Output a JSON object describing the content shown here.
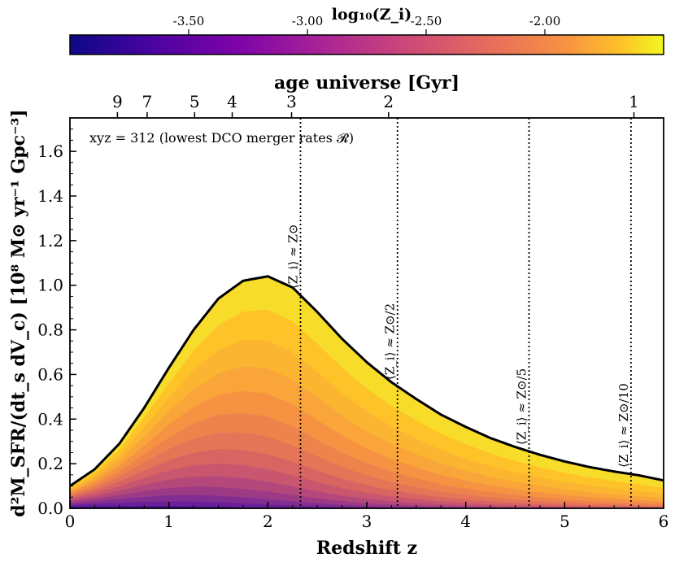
{
  "chart_data": {
    "type": "area",
    "xlabel": "Redshift z",
    "ylabel": "d²M_SFR/(dt_s dV_c) [10⁸ M⊙ yr⁻¹ Gpc⁻³]",
    "xlim": [
      0,
      6
    ],
    "ylim": [
      0,
      1.75
    ],
    "x_ticks": [
      0,
      1,
      2,
      3,
      4,
      5,
      6
    ],
    "y_ticks": [
      0.0,
      0.2,
      0.4,
      0.6,
      0.8,
      1.0,
      1.2,
      1.4,
      1.6
    ],
    "x_tick_labels": [
      "0",
      "1",
      "2",
      "3",
      "4",
      "5",
      "6"
    ],
    "y_tick_labels": [
      "0.0",
      "0.2",
      "0.4",
      "0.6",
      "0.8",
      "1.0",
      "1.2",
      "1.4",
      "1.6"
    ],
    "top_axis": {
      "label": "age universe [Gyr]",
      "ticks": [
        {
          "label": "9",
          "z": 0.48
        },
        {
          "label": "7",
          "z": 0.78
        },
        {
          "label": "5",
          "z": 1.26
        },
        {
          "label": "4",
          "z": 1.64
        },
        {
          "label": "3",
          "z": 2.24
        },
        {
          "label": "2",
          "z": 3.22
        },
        {
          "label": "1",
          "z": 5.7
        }
      ]
    },
    "total_sfrd_curve": {
      "x": [
        0,
        0.25,
        0.5,
        0.75,
        1.0,
        1.25,
        1.5,
        1.75,
        2.0,
        2.25,
        2.5,
        2.75,
        3.0,
        3.25,
        3.5,
        3.75,
        4.0,
        4.25,
        4.5,
        4.75,
        5.0,
        5.25,
        5.5,
        5.75,
        6.0
      ],
      "y": [
        0.1,
        0.175,
        0.29,
        0.45,
        0.63,
        0.8,
        0.94,
        1.02,
        1.04,
        0.99,
        0.88,
        0.76,
        0.655,
        0.565,
        0.49,
        0.42,
        0.365,
        0.315,
        0.275,
        0.24,
        0.21,
        0.185,
        0.165,
        0.148,
        0.125
      ]
    },
    "metallicity_bands": 14,
    "vertical_lines": [
      {
        "z": 2.33,
        "label": "⟨Z_i⟩ ≈ Z⊙"
      },
      {
        "z": 3.31,
        "label": "⟨Z_i⟩ ≈ Z⊙/2"
      },
      {
        "z": 4.64,
        "label": "⟨Z_i⟩ ≈ Z⊙/5"
      },
      {
        "z": 5.67,
        "label": "⟨Z_i⟩ ≈ Z⊙/10"
      }
    ],
    "annotation": "xyz = 312 (lowest DCO merger rates 𝓡)",
    "colorbar": {
      "label": "log₁₀(Z_i)",
      "range": [
        -4.0,
        -1.5
      ],
      "ticks": [
        {
          "value": -3.5,
          "label": "-3.50"
        },
        {
          "value": -3.0,
          "label": "-3.00"
        },
        {
          "value": -2.5,
          "label": "-2.50"
        },
        {
          "value": -2.0,
          "label": "-2.00"
        }
      ],
      "colormap": "plasma"
    }
  }
}
